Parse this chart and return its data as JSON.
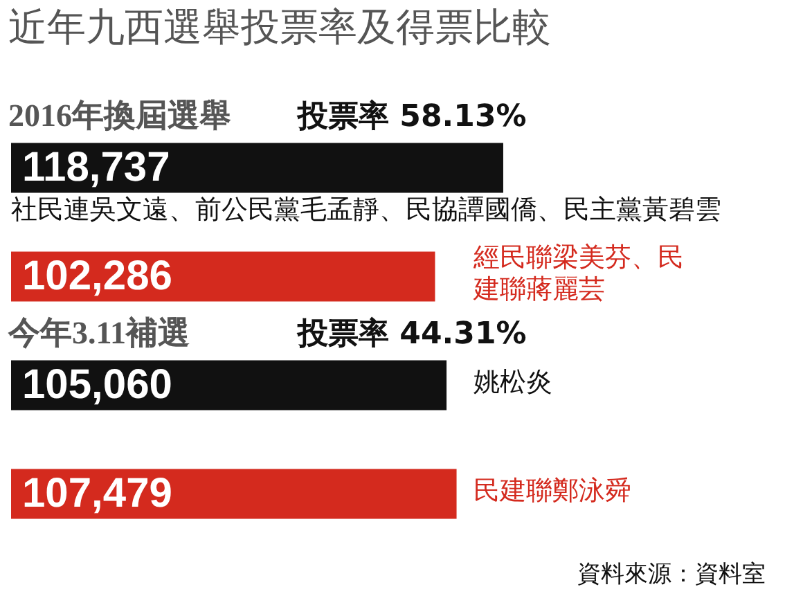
{
  "chart_data": {
    "type": "bar",
    "orientation": "horizontal",
    "title": "近年九西選舉投票率及得票比較",
    "categories": [
      "社民連吳文遠、前公民黨毛孟靜、民協譚國僑、民主黨黃碧雲",
      "經民聯梁美芬、民建聯蔣麗芸",
      "姚松炎",
      "民建聯鄭泳舜"
    ],
    "values": [
      118737,
      102286,
      105060,
      107479
    ],
    "colors": [
      "#111111",
      "#d42a1e",
      "#111111",
      "#d42a1e"
    ],
    "value_labels": [
      "118,737",
      "102,286",
      "105,060",
      "107,479"
    ],
    "annotations": [
      "2016年換屆選舉",
      "投票率 58.13%",
      "今年3.11補選",
      "投票率 44.31%",
      "資料來源：資料室"
    ],
    "legend": false
  }
}
